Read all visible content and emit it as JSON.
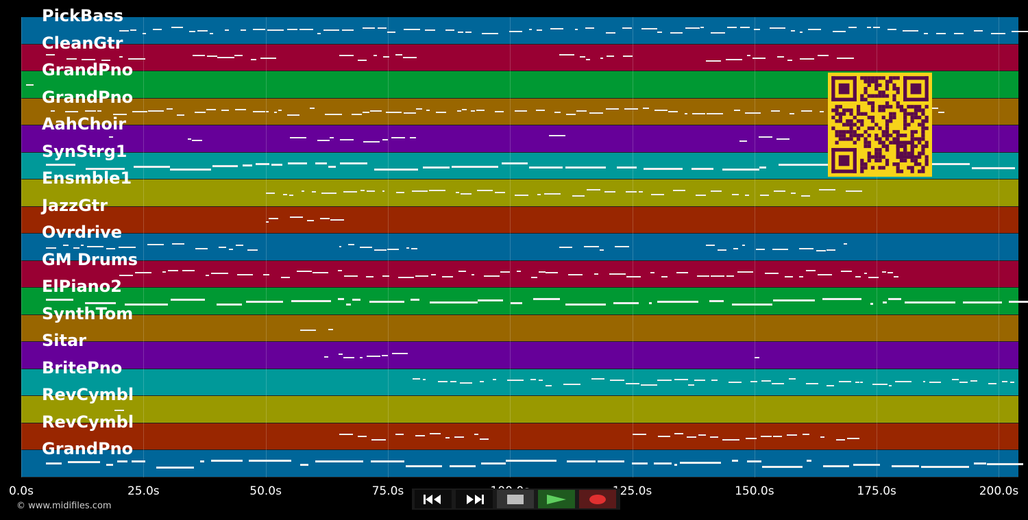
{
  "timeline": {
    "duration_s": 204,
    "ticks": [
      {
        "t": 0,
        "label": "0.0s"
      },
      {
        "t": 25,
        "label": "25.0s"
      },
      {
        "t": 50,
        "label": "50.0s"
      },
      {
        "t": 75,
        "label": "75.0s"
      },
      {
        "t": 100,
        "label": "100.0s"
      },
      {
        "t": 125,
        "label": "125.0s"
      },
      {
        "t": 150,
        "label": "150.0s"
      },
      {
        "t": 175,
        "label": "175.0s"
      },
      {
        "t": 200,
        "label": "200.0s"
      }
    ]
  },
  "tracks": [
    {
      "name": "PickBass",
      "color": "#006699"
    },
    {
      "name": "CleanGtr",
      "color": "#990033"
    },
    {
      "name": "GrandPno",
      "color": "#009933"
    },
    {
      "name": "GrandPno",
      "color": "#996600"
    },
    {
      "name": "AahChoir",
      "color": "#660099"
    },
    {
      "name": "SynStrg1",
      "color": "#009999"
    },
    {
      "name": "Ensmble1",
      "color": "#999900"
    },
    {
      "name": "JazzGtr",
      "color": "#992600"
    },
    {
      "name": "Ovrdrive",
      "color": "#006699"
    },
    {
      "name": "GM Drums",
      "color": "#990033"
    },
    {
      "name": "ElPiano2",
      "color": "#009933"
    },
    {
      "name": "SynthTom",
      "color": "#996600"
    },
    {
      "name": "Sitar",
      "color": "#660099"
    },
    {
      "name": "BritePno",
      "color": "#009999"
    },
    {
      "name": "RevCymbl",
      "color": "#999900"
    },
    {
      "name": "RevCymbl",
      "color": "#992600"
    },
    {
      "name": "GrandPno",
      "color": "#006699"
    }
  ],
  "copyright": "© www.midifiles.com",
  "transport": {
    "rewind_icon": "rewind-icon",
    "forward_icon": "fast-forward-icon",
    "stop_icon": "stop-icon",
    "play_icon": "play-icon",
    "record_icon": "record-icon",
    "play_color": "#5fcf5f",
    "record_color": "#e03030"
  },
  "qr": {
    "bg": "#f7d31a",
    "fg": "#5a0a4a"
  }
}
